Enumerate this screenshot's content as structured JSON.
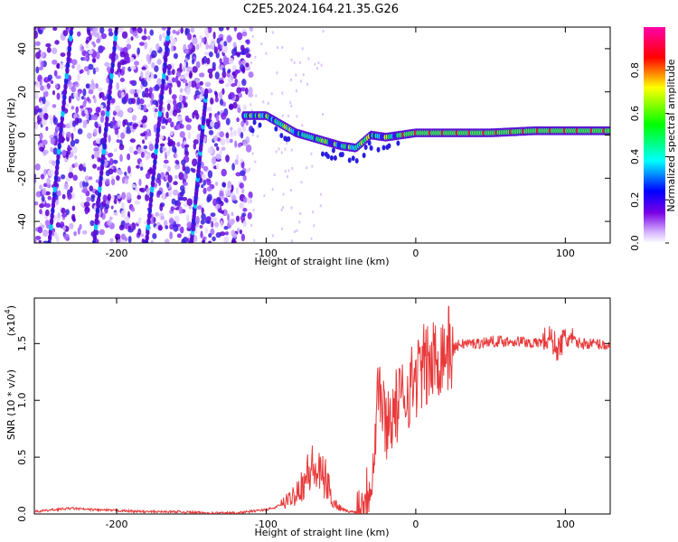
{
  "title": "C2E5.2024.164.21.35.G26",
  "chart_data": [
    {
      "type": "heatmap",
      "xlabel": "Height of straight line (km)",
      "ylabel": "Frequency (Hz)",
      "xlim": [
        -255,
        130
      ],
      "ylim": [
        -50,
        50
      ],
      "xticks": [
        -200,
        -100,
        0,
        100
      ],
      "yticks": [
        -40,
        -20,
        0,
        20,
        40
      ],
      "colorbar": {
        "label": "Normalized spectral amplitude",
        "range": [
          0,
          1
        ],
        "ticks": [
          "0.0",
          "0.2",
          "0.4",
          "0.6",
          "0.8"
        ],
        "colormap": [
          "#ffffff",
          "#8a2be2",
          "#0000ff",
          "#00ffff",
          "#00ff00",
          "#ffff00",
          "#ff0000",
          "#ff00ff"
        ]
      },
      "ridge": [
        {
          "x": -115,
          "y": 9
        },
        {
          "x": -100,
          "y": 9
        },
        {
          "x": -90,
          "y": 5
        },
        {
          "x": -80,
          "y": 1
        },
        {
          "x": -70,
          "y": -1
        },
        {
          "x": -60,
          "y": -3
        },
        {
          "x": -50,
          "y": -5
        },
        {
          "x": -40,
          "y": -6
        },
        {
          "x": -30,
          "y": 0
        },
        {
          "x": -20,
          "y": -1
        },
        {
          "x": -10,
          "y": 0
        },
        {
          "x": 0,
          "y": 1
        },
        {
          "x": 20,
          "y": 1
        },
        {
          "x": 50,
          "y": 1
        },
        {
          "x": 80,
          "y": 2
        },
        {
          "x": 100,
          "y": 2
        },
        {
          "x": 130,
          "y": 2
        }
      ],
      "streaks": [
        {
          "x0": -245,
          "y0": -50,
          "x1": -230,
          "y1": 50
        },
        {
          "x0": -215,
          "y0": -50,
          "x1": -200,
          "y1": 50
        },
        {
          "x0": -180,
          "y0": -50,
          "x1": -165,
          "y1": 50
        },
        {
          "x0": -150,
          "y0": -50,
          "x1": -140,
          "y1": 20
        }
      ]
    },
    {
      "type": "line",
      "xlabel": "Height of straight line (km)",
      "ylabel": "SNR (10 * v/v)",
      "yscale_label": "(x10",
      "yscale_exp": "4",
      "yscale_close": ")",
      "xlim": [
        -255,
        130
      ],
      "ylim": [
        0,
        1.9
      ],
      "xticks": [
        -200,
        -100,
        0,
        100
      ],
      "yticks": [
        "0.0",
        "0.5",
        "1.0",
        "1.5"
      ],
      "color": "#e8393a",
      "series": [
        {
          "x": [
            -255,
            -240,
            -230,
            -220,
            -200,
            -180,
            -160,
            -140,
            -120,
            -105,
            -95,
            -85,
            -75,
            -70,
            -65,
            -60,
            -55,
            -50,
            -45,
            -40,
            -35,
            -30,
            -27,
            -25,
            -22,
            -20,
            -15,
            -10,
            -5,
            0,
            5,
            10,
            15,
            20,
            25,
            30,
            40,
            50,
            60,
            70,
            80,
            90,
            95,
            100,
            110,
            120,
            130
          ],
          "y": [
            0.02,
            0.04,
            0.05,
            0.04,
            0.03,
            0.02,
            0.02,
            0.01,
            0.01,
            0.03,
            0.05,
            0.12,
            0.28,
            0.4,
            0.35,
            0.3,
            0.1,
            0.05,
            0.02,
            0.02,
            0.1,
            0.3,
            0.7,
            1.2,
            0.9,
            0.8,
            0.9,
            1.0,
            1.1,
            1.2,
            1.3,
            1.3,
            1.4,
            1.45,
            1.45,
            1.5,
            1.5,
            1.52,
            1.52,
            1.52,
            1.5,
            1.55,
            1.45,
            1.55,
            1.5,
            1.5,
            1.48
          ]
        }
      ]
    }
  ]
}
